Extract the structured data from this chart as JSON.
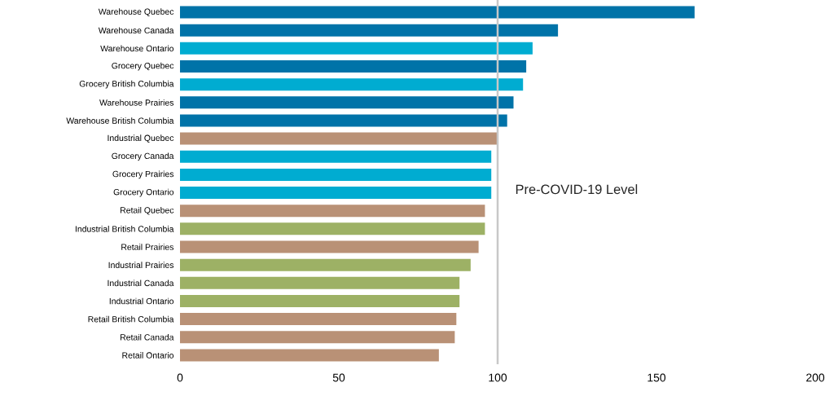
{
  "chart_data": {
    "type": "bar",
    "orientation": "horizontal",
    "categories": [
      "Warehouse Quebec",
      "Warehouse Canada",
      "Warehouse Ontario",
      "Grocery Quebec",
      "Grocery British Columbia",
      "Warehouse Prairies",
      "Warehouse British Columbia",
      "Industrial Quebec",
      "Grocery Canada",
      "Grocery Prairies",
      "Grocery Ontario",
      "Retail Quebec",
      "Industrial British Columbia",
      "Retail Prairies",
      "Industrial Prairies",
      "Industrial Canada",
      "Industrial Ontario",
      "Retail British Columbia",
      "Retail Canada",
      "Retail Ontario"
    ],
    "values": [
      162,
      119,
      111,
      109,
      108,
      105,
      103,
      100,
      98,
      98,
      98,
      96,
      96,
      94,
      91.5,
      88,
      88,
      87,
      86.5,
      81.5
    ],
    "colors": [
      "#0073a8",
      "#0073a8",
      "#00acd1",
      "#0073a8",
      "#00acd1",
      "#0073a8",
      "#0073a8",
      "#b99176",
      "#00acd1",
      "#00acd1",
      "#00acd1",
      "#b99176",
      "#9db165",
      "#b99176",
      "#9db165",
      "#9db165",
      "#9db165",
      "#b99176",
      "#b99176",
      "#b99176"
    ],
    "xlim": [
      0,
      200
    ],
    "xticks": [
      0,
      50,
      100,
      150,
      200
    ],
    "ref_lines": [
      {
        "axis": "x",
        "value": 100,
        "label": "Pre-COVID-19 Level",
        "color": "#c8c8c8"
      }
    ],
    "grid": false
  }
}
